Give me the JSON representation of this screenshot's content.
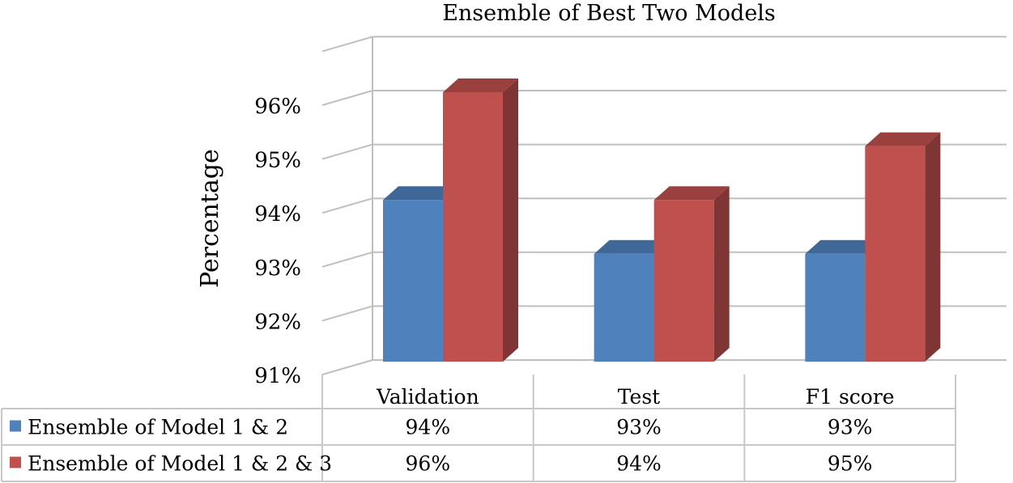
{
  "chart_data": {
    "type": "bar",
    "title": "Ensemble of Best Two Models",
    "ylabel": "Percentage",
    "xlabel": "",
    "categories": [
      "Validation",
      "Test",
      "F1 score"
    ],
    "series": [
      {
        "name": "Ensemble of Model 1 & 2",
        "values": [
          94,
          93,
          93
        ],
        "labels": [
          "94%",
          "93%",
          "93%"
        ],
        "color": "#4f81bd"
      },
      {
        "name": "Ensemble of Model 1 & 2 & 3",
        "values": [
          96,
          94,
          95
        ],
        "labels": [
          "96%",
          "94%",
          "95%"
        ],
        "color": "#c0504d"
      }
    ],
    "ylim": [
      91,
      96
    ],
    "yticks": [
      "91%",
      "92%",
      "93%",
      "94%",
      "95%",
      "96%"
    ],
    "grid": true,
    "three_d": true,
    "legend": "data-table-below"
  }
}
